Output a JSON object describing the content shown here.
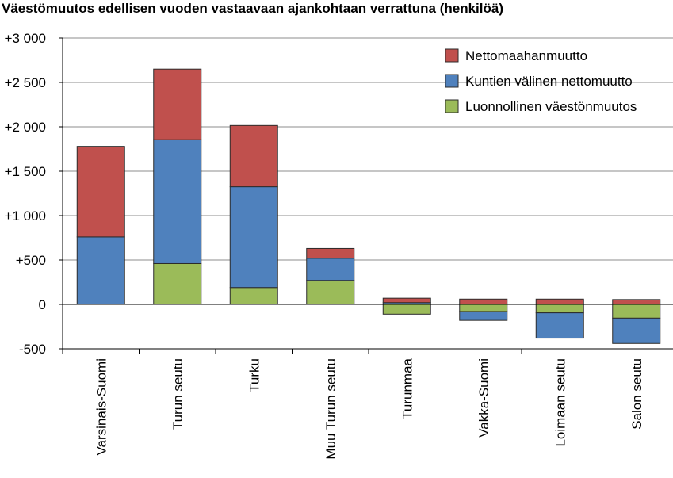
{
  "chart_data": {
    "type": "bar",
    "stacked": true,
    "title": "Väestömuutos edellisen vuoden vastaavaan ajankohtaan verrattuna (henkilöä)",
    "xlabel": "",
    "ylabel": "",
    "ylim": [
      -500,
      3000
    ],
    "yticks": [
      {
        "value": 3000,
        "label": "+3 000"
      },
      {
        "value": 2500,
        "label": "+2 500"
      },
      {
        "value": 2000,
        "label": "+2 000"
      },
      {
        "value": 1500,
        "label": "+1 500"
      },
      {
        "value": 1000,
        "label": "+1 000"
      },
      {
        "value": 500,
        "label": "+500"
      },
      {
        "value": 0,
        "label": "0"
      },
      {
        "value": -500,
        "label": "-500"
      }
    ],
    "grid": true,
    "legend_position": "top-right",
    "categories": [
      "Varsinais-Suomi",
      "Turun seutu",
      "Turku",
      "Muu Turun seutu",
      "Turunmaa",
      "Vakka-Suomi",
      "Loimaan seutu",
      "Salon seutu"
    ],
    "series": [
      {
        "name": "Luonnollinen väestönmuutos",
        "color": "#9bbb59",
        "values": [
          0,
          460,
          190,
          270,
          -110,
          -80,
          -95,
          -155
        ]
      },
      {
        "name": "Kuntien välinen nettomuutto",
        "color": "#4f81bd",
        "values": [
          760,
          1395,
          1135,
          250,
          20,
          -100,
          -285,
          -285
        ]
      },
      {
        "name": "Nettomaahanmuutto",
        "color": "#c0504d",
        "values": [
          1020,
          795,
          690,
          110,
          50,
          60,
          60,
          55
        ]
      }
    ]
  }
}
